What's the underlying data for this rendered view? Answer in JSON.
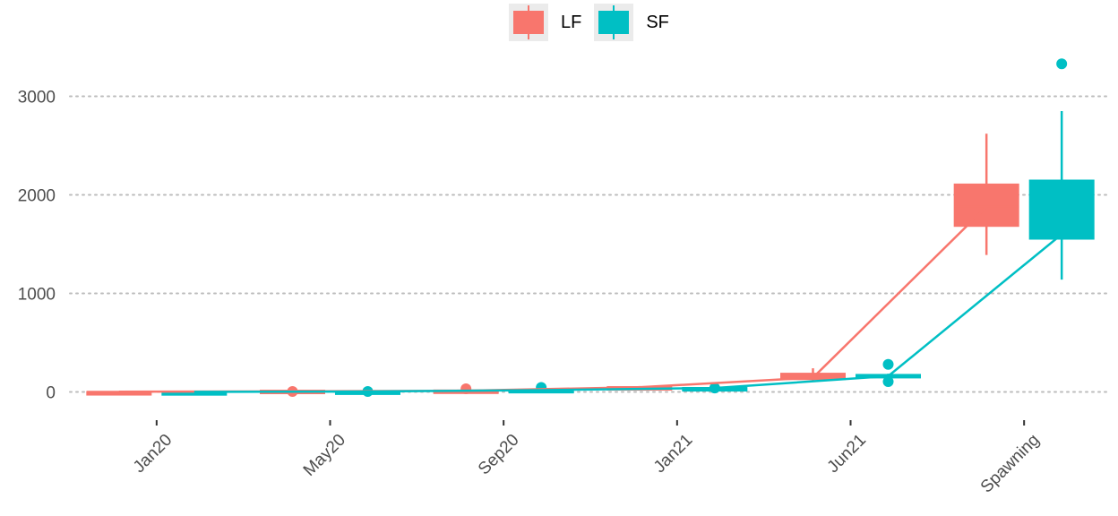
{
  "chart_data": {
    "type": "box",
    "categories": [
      "Jan20",
      "May20",
      "Sep20",
      "Jan21",
      "Jun21",
      "Spawning"
    ],
    "ylim": [
      -250,
      3450
    ],
    "yticks": [
      0,
      1000,
      2000,
      3000
    ],
    "grid": "horizontal dotted",
    "legend_position": "top",
    "series": [
      {
        "name": "LF",
        "color": "#F8766D",
        "boxes": [
          {
            "category": "Jan20",
            "min": 0,
            "q1": 0,
            "median": 2,
            "q3": 4,
            "max": 6,
            "outliers": []
          },
          {
            "category": "May20",
            "min": 0,
            "q1": 0,
            "median": 6,
            "q3": 18,
            "max": 25,
            "outliers": [
              5
            ]
          },
          {
            "category": "Sep20",
            "min": 2,
            "q1": 8,
            "median": 12,
            "q3": 20,
            "max": 25,
            "outliers": [
              32
            ]
          },
          {
            "category": "Jan21",
            "min": 35,
            "q1": 43,
            "median": 48,
            "q3": 54,
            "max": 60,
            "outliers": []
          },
          {
            "category": "Jun21",
            "min": 110,
            "q1": 125,
            "median": 145,
            "q3": 190,
            "max": 240,
            "outliers": []
          },
          {
            "category": "Spawning",
            "min": 1390,
            "q1": 1680,
            "median": 1880,
            "q3": 2110,
            "max": 2620,
            "outliers": []
          }
        ]
      },
      {
        "name": "SF",
        "color": "#00BFC4",
        "boxes": [
          {
            "category": "Jan20",
            "min": 0,
            "q1": 0,
            "median": 1,
            "q3": 3,
            "max": 5,
            "outliers": []
          },
          {
            "category": "May20",
            "min": 0,
            "q1": 1,
            "median": 4,
            "q3": 10,
            "max": 16,
            "outliers": [
              5
            ]
          },
          {
            "category": "Sep20",
            "min": 8,
            "q1": 12,
            "median": 18,
            "q3": 26,
            "max": 34,
            "outliers": [
              45
            ]
          },
          {
            "category": "Jan21",
            "min": 30,
            "q1": 35,
            "median": 40,
            "q3": 45,
            "max": 50,
            "outliers": [
              40
            ]
          },
          {
            "category": "Jun21",
            "min": 140,
            "q1": 145,
            "median": 160,
            "q3": 178,
            "max": 185,
            "outliers": [
              280,
              105
            ]
          },
          {
            "category": "Spawning",
            "min": 1140,
            "q1": 1550,
            "median": 1600,
            "q3": 2150,
            "max": 2850,
            "outliers": [
              3330
            ]
          }
        ]
      }
    ]
  }
}
